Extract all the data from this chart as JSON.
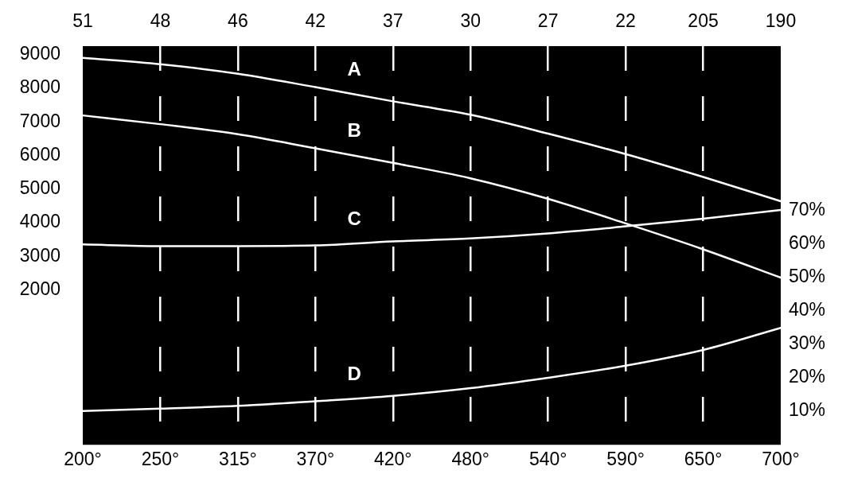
{
  "chart_data": {
    "type": "line",
    "categories": [
      "200°",
      "250°",
      "315°",
      "370°",
      "420°",
      "480°",
      "540°",
      "590°",
      "650°",
      "700°"
    ],
    "annotations": [
      "51",
      "48",
      "46",
      "42",
      "37",
      "30",
      "27",
      "22",
      "205",
      "190"
    ],
    "series": [
      {
        "name": "A",
        "color": "#ffffff",
        "values": [
          8900,
          8710,
          8430,
          8030,
          7610,
          7210,
          6650,
          6040,
          5360,
          4640
        ]
      },
      {
        "name": "B",
        "color": "#ffffff",
        "values": [
          7190,
          6930,
          6630,
          6210,
          5780,
          5320,
          4710,
          3980,
          3210,
          2370
        ]
      },
      {
        "name": "C",
        "color": "#ffffff",
        "axis": "y2",
        "values": [
          59.8,
          59.3,
          59.3,
          59.5,
          60.7,
          61.6,
          63.1,
          65.2,
          67.5,
          70.1
        ]
      },
      {
        "name": "D",
        "color": "#ffffff",
        "axis": "y2",
        "values": [
          10.1,
          10.8,
          11.6,
          13.0,
          14.6,
          16.9,
          20.0,
          23.6,
          28.3,
          34.9
        ]
      }
    ],
    "ylim": [
      -2600,
      9250
    ],
    "yticks": [
      2000,
      3000,
      4000,
      5000,
      6000,
      7000,
      8000,
      9000
    ],
    "y2lim": [
      0,
      119
    ],
    "y2ticks": [
      {
        "value": 10,
        "label": "10%"
      },
      {
        "value": 20,
        "label": "20%"
      },
      {
        "value": 30,
        "label": "30%"
      },
      {
        "value": 40,
        "label": "40%"
      },
      {
        "value": 50,
        "label": "50%"
      },
      {
        "value": 60,
        "label": "60%"
      },
      {
        "value": 70,
        "label": "70%"
      }
    ],
    "grid": "x",
    "legend": false,
    "marker": "none",
    "line_style": "solid"
  }
}
